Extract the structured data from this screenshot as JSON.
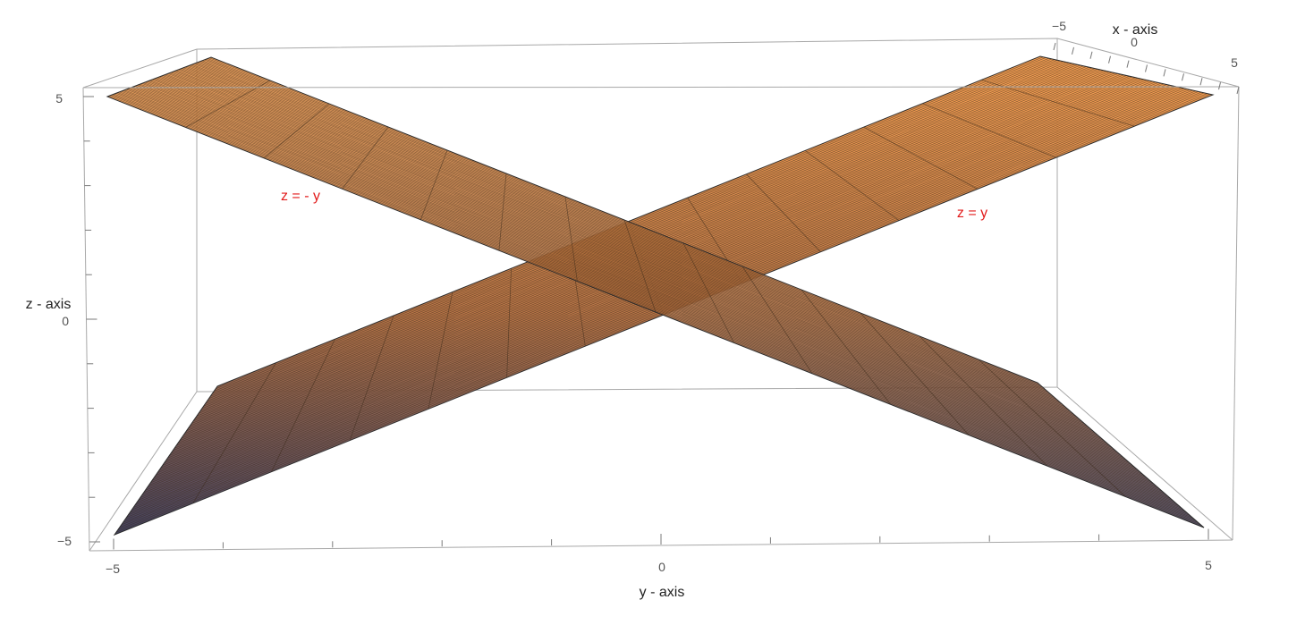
{
  "axes": {
    "x_label": "x - axis",
    "y_label": "y - axis",
    "z_label": "z - axis",
    "y_ticks": [
      "−5",
      "0",
      "5"
    ],
    "z_ticks": [
      "5",
      "0",
      "−5"
    ],
    "x_ticks": [
      "−5",
      "0",
      "5"
    ]
  },
  "annotations": {
    "plane_neg": "z = - y",
    "plane_pos": "z = y",
    "annotation_color": "#e21b1b"
  },
  "colors": {
    "surface_top": "#f59a4a",
    "surface_mid": "#b8703f",
    "surface_bottom": "#33365a"
  }
}
